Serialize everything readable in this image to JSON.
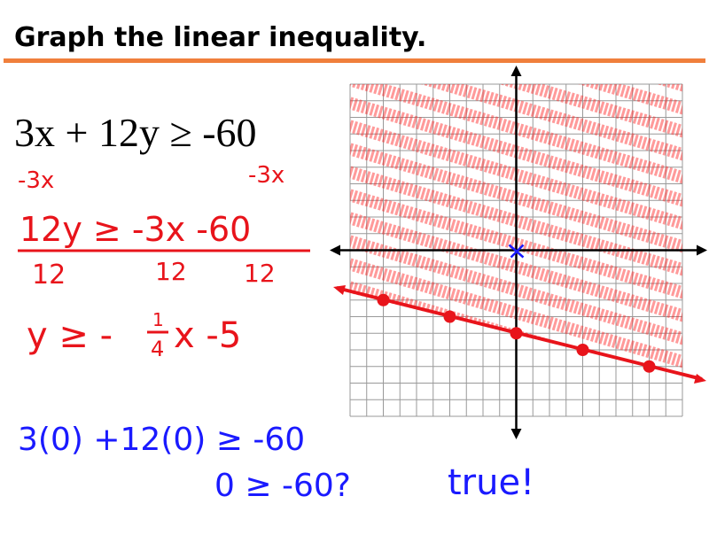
{
  "header": {
    "title": "Graph the linear inequality."
  },
  "problem": {
    "equation": "3x + 12y ≥ -60"
  },
  "work": {
    "subtract_left": "-3x",
    "subtract_right": "-3x",
    "divide_top": "12y ≥ -3x -60",
    "divide_bottom": [
      "12",
      "12",
      "12"
    ],
    "slope_form": "y ≥ -",
    "fraction_top": "1",
    "fraction_bottom": "4",
    "slope_rest": "x -5",
    "test_point": "3(0) +12(0) ≥ -60",
    "test_result": "0 ≥ -60?",
    "verdict": "true!"
  }
}
